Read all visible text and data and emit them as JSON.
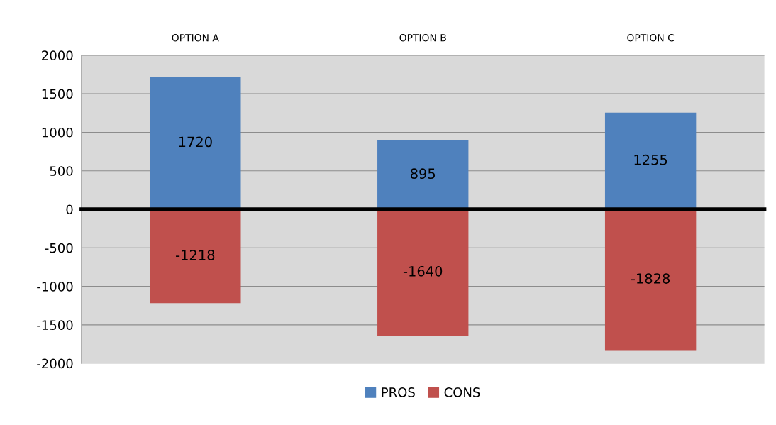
{
  "chart_data": {
    "type": "bar",
    "stacked": true,
    "categories": [
      "OPTION A",
      "OPTION B",
      "OPTION C"
    ],
    "series": [
      {
        "name": "PROS",
        "color": "#4f81bd",
        "values": [
          1720,
          895,
          1255
        ]
      },
      {
        "name": "CONS",
        "color": "#c0504d",
        "values": [
          -1218,
          -1640,
          -1828
        ]
      }
    ],
    "ylim": [
      -2000,
      2000
    ],
    "yticks": [
      -2000,
      -1500,
      -1000,
      -500,
      0,
      500,
      1000,
      1500,
      2000
    ],
    "grid": "y",
    "legend": "bottom",
    "data_labels": true
  }
}
